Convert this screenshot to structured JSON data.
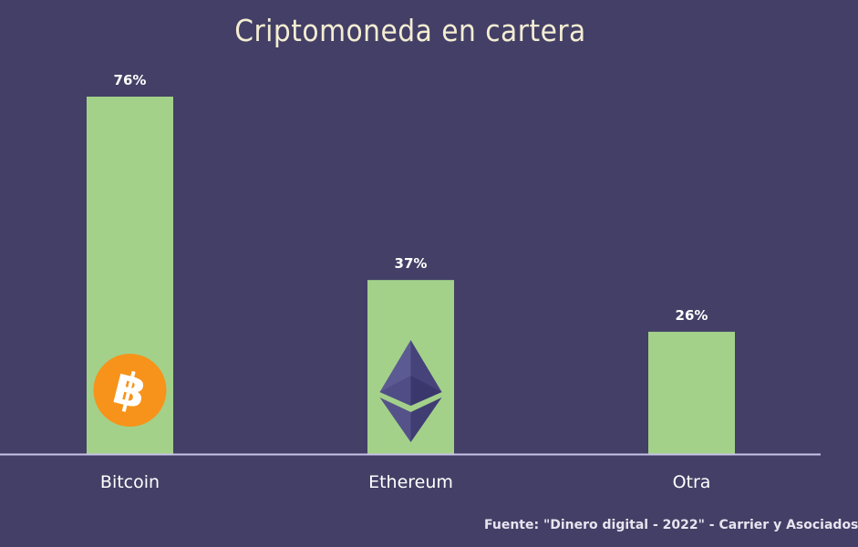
{
  "chart_data": {
    "type": "bar",
    "title": "Criptomoneda en cartera",
    "categories": [
      "Bitcoin",
      "Ethereum",
      "Otra"
    ],
    "values": [
      76,
      37,
      26
    ],
    "value_labels": [
      "76%",
      "37%",
      "26%"
    ],
    "unit": "%",
    "ylim": [
      0,
      80
    ],
    "grid": false,
    "legend": "none",
    "icons": [
      "bitcoin-icon",
      "ethereum-icon",
      null
    ],
    "source": "Fuente: \"Dinero digital - 2022\" - Carrier y Asociados"
  },
  "colors": {
    "background": "#433f66",
    "bar": "#a3d18a",
    "baseline": "#c8c4e8",
    "title": "#f4edd2",
    "bitcoin": "#f7931a",
    "ethereum": "#4a4880"
  }
}
